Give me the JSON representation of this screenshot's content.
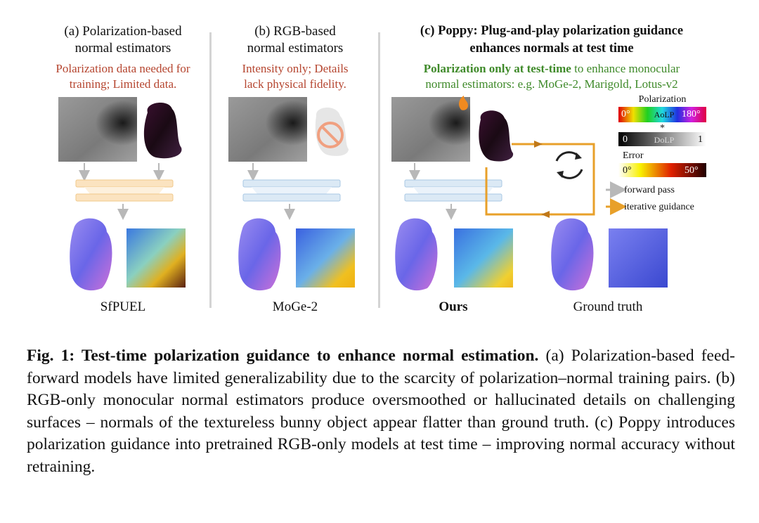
{
  "panel_a": {
    "header_line1": "(a) Polarization-based",
    "header_line2": "normal estimators",
    "note_line1": "Polarization data needed for",
    "note_line2": "training; Limited data.",
    "method_label": "SfPUEL"
  },
  "panel_b": {
    "header_line1": "(b) RGB-based",
    "header_line2": "normal estimators",
    "note_line1": "Intensity only; Details",
    "note_line2": "lack physical fidelity.",
    "method_label": "MoGe-2"
  },
  "panel_c": {
    "header_line1": "(c) Poppy: Plug-and-play polarization guidance",
    "header_line2": "enhances normals at test time",
    "note_bold": "Polarization only at test-time",
    "note_rest": " to enhance monocular",
    "note_line2": "normal estimators: e.g. MoGe-2, Marigold, Lotus-v2",
    "method_label": "Ours",
    "gt_label": "Ground truth"
  },
  "legend": {
    "polarization_title": "Polarization",
    "aolp_min": "0°",
    "aolp_name": "AoLP",
    "aolp_max": "180°",
    "star": "*",
    "dolp_min": "0",
    "dolp_name": "DoLP",
    "dolp_max": "1",
    "error_title": "Error",
    "error_min": "0°",
    "error_max": "50°",
    "forward_pass": "forward pass",
    "iterative_guidance": "iterative guidance"
  },
  "colors": {
    "note_red": "#b5452f",
    "note_green": "#3f8a2a",
    "guidance_orange": "#e8a02a",
    "forward_gray": "#b8b8b8",
    "block_orange": "#fbe3c0",
    "block_blue": "#dbe9f5"
  },
  "caption": {
    "fig_label": "Fig. 1: Test-time polarization guidance to enhance normal estimation.",
    "text": " (a) Polarization-based feed-forward models have limited generalizability due to the scarcity of polarization–normal training pairs. (b) RGB-only monocular normal estimators produce oversmoothed or hallucinated details on challenging surfaces – normals of the textureless bunny object appear flatter than ground truth. (c) Poppy introduces polarization guidance into pretrained RGB-only models at test time – improving normal accuracy without retraining."
  }
}
